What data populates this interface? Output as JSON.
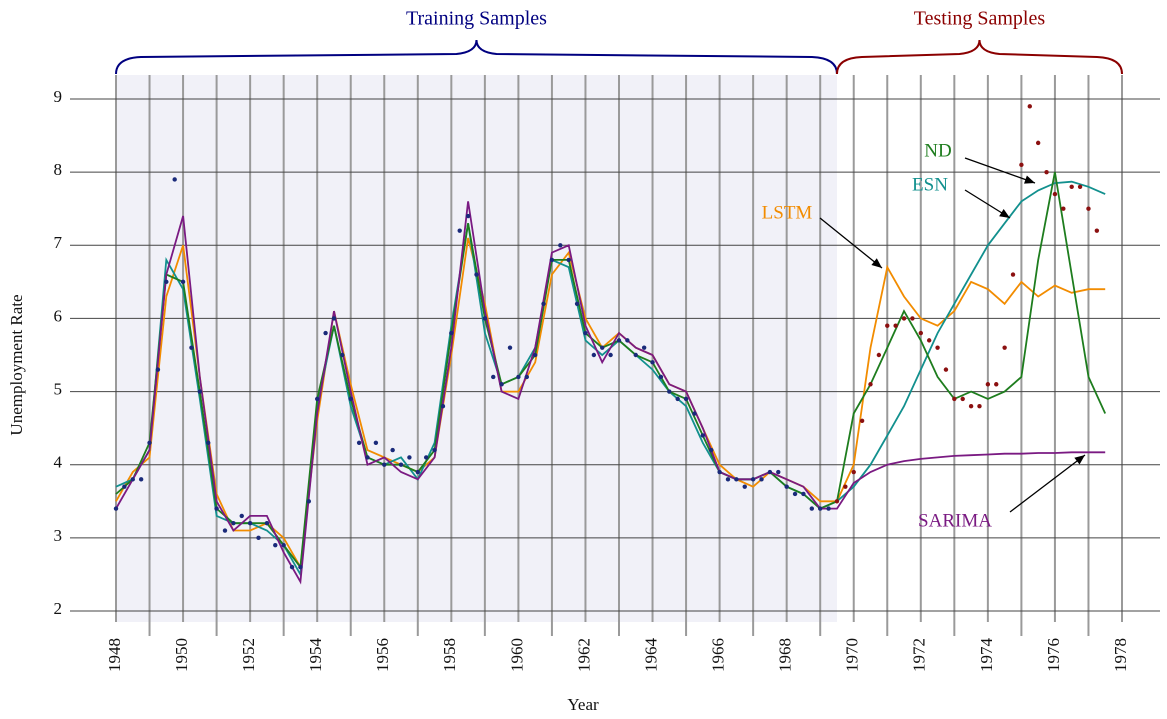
{
  "chart_data": {
    "type": "line",
    "xlabel": "Year",
    "ylabel": "Unemployment Rate",
    "xlim": [
      1948,
      1978
    ],
    "ylim": [
      2,
      9.4
    ],
    "xticks": [
      1948,
      1950,
      1952,
      1954,
      1956,
      1958,
      1960,
      1962,
      1964,
      1966,
      1968,
      1970,
      1972,
      1974,
      1976,
      1978
    ],
    "minor_xticks": [
      1949,
      1951,
      1953,
      1955,
      1957,
      1959,
      1961,
      1963,
      1965,
      1967,
      1969,
      1971,
      1973,
      1975,
      1977
    ],
    "yticks": [
      2,
      3,
      4,
      5,
      6,
      7,
      8,
      9
    ],
    "grid": true,
    "train_end": 1969.5,
    "regions": [
      {
        "label": "Training Samples",
        "range": [
          1948,
          1969.5
        ],
        "color": "#000080"
      },
      {
        "label": "Testing Samples",
        "range": [
          1969.5,
          1978
        ],
        "color": "#8b0000"
      }
    ],
    "actual": {
      "color": "#1a2a7a",
      "test_color": "#8b1010",
      "x_start": 1948,
      "x_step": 0.25,
      "values": [
        3.4,
        3.7,
        3.8,
        3.8,
        4.3,
        5.3,
        6.5,
        7.9,
        6.5,
        5.6,
        5.0,
        4.3,
        3.4,
        3.1,
        3.2,
        3.3,
        3.2,
        3.0,
        3.2,
        2.9,
        2.9,
        2.6,
        2.6,
        3.5,
        4.9,
        5.8,
        6.0,
        5.5,
        4.9,
        4.3,
        4.1,
        4.3,
        4.0,
        4.2,
        4.0,
        4.1,
        3.9,
        4.1,
        4.2,
        4.8,
        5.8,
        7.2,
        7.4,
        6.6,
        6.0,
        5.2,
        5.1,
        5.6,
        5.2,
        5.2,
        5.5,
        6.2,
        6.8,
        7.0,
        6.8,
        6.2,
        5.8,
        5.5,
        5.6,
        5.5,
        5.7,
        5.7,
        5.5,
        5.6,
        5.4,
        5.2,
        5.0,
        4.9,
        4.9,
        4.7,
        4.4,
        4.2,
        3.9,
        3.8,
        3.8,
        3.7,
        3.8,
        3.8,
        3.9,
        3.9,
        3.7,
        3.6,
        3.6,
        3.4,
        3.4,
        3.4,
        3.5,
        3.7,
        3.9,
        4.6,
        5.1,
        5.5,
        5.9,
        5.9,
        6.0,
        6.0,
        5.8,
        5.7,
        5.6,
        5.3,
        4.9,
        4.9,
        4.8,
        4.8,
        5.1,
        5.1,
        5.6,
        6.6,
        8.1,
        8.9,
        8.4,
        8.0,
        7.7,
        7.5,
        7.8,
        7.8,
        7.5,
        7.2
      ]
    },
    "model_x_start": 1948,
    "model_x_step": 0.5,
    "series": [
      {
        "name": "LSTM",
        "color": "#f28c00",
        "values": [
          3.5,
          3.9,
          4.1,
          6.3,
          7.0,
          5.2,
          3.6,
          3.1,
          3.1,
          3.2,
          3.0,
          2.6,
          4.6,
          6.1,
          5.1,
          4.2,
          4.1,
          4.0,
          3.9,
          4.1,
          5.5,
          7.1,
          6.2,
          5.0,
          5.0,
          5.4,
          6.6,
          6.9,
          6.0,
          5.6,
          5.8,
          5.6,
          5.5,
          5.1,
          5.0,
          4.5,
          4.0,
          3.8,
          3.7,
          3.9,
          3.8,
          3.7,
          3.5,
          3.5,
          4.0,
          5.6,
          6.7,
          6.3,
          6.0,
          5.9,
          6.1,
          6.5,
          6.4,
          6.2,
          6.5,
          6.3,
          6.45,
          6.35,
          6.4,
          6.4
        ]
      },
      {
        "name": "ESN",
        "color": "#12908e",
        "values": [
          3.7,
          3.8,
          4.2,
          6.8,
          6.4,
          4.9,
          3.3,
          3.2,
          3.2,
          3.1,
          2.9,
          2.5,
          4.8,
          5.9,
          4.8,
          4.1,
          4.0,
          4.1,
          3.8,
          4.3,
          5.9,
          7.3,
          5.8,
          5.1,
          5.2,
          5.6,
          6.8,
          6.7,
          5.7,
          5.5,
          5.7,
          5.5,
          5.3,
          5.0,
          4.8,
          4.3,
          3.9,
          3.8,
          3.8,
          3.9,
          3.7,
          3.6,
          3.4,
          3.5,
          3.7,
          4.0,
          4.4,
          4.8,
          5.3,
          5.8,
          6.2,
          6.6,
          7.0,
          7.3,
          7.6,
          7.75,
          7.85,
          7.87,
          7.8,
          7.7
        ]
      },
      {
        "name": "ND",
        "color": "#1e7d1e",
        "values": [
          3.6,
          3.8,
          4.3,
          6.6,
          6.5,
          5.0,
          3.4,
          3.2,
          3.2,
          3.2,
          2.9,
          2.6,
          4.9,
          5.9,
          4.9,
          4.1,
          4.0,
          4.0,
          3.9,
          4.2,
          5.8,
          7.3,
          6.0,
          5.1,
          5.2,
          5.5,
          6.8,
          6.8,
          5.8,
          5.6,
          5.7,
          5.5,
          5.4,
          5.0,
          4.9,
          4.4,
          3.9,
          3.8,
          3.8,
          3.9,
          3.7,
          3.6,
          3.4,
          3.5,
          4.7,
          5.1,
          5.6,
          6.1,
          5.7,
          5.2,
          4.9,
          5.0,
          4.9,
          5.0,
          5.2,
          6.8,
          8.0,
          6.6,
          5.2,
          4.7
        ]
      },
      {
        "name": "SARIMA",
        "color": "#7a1a82",
        "values": [
          3.4,
          3.8,
          4.2,
          6.6,
          7.4,
          5.2,
          3.5,
          3.1,
          3.3,
          3.3,
          2.8,
          2.4,
          4.7,
          6.1,
          5.0,
          4.0,
          4.1,
          3.9,
          3.8,
          4.1,
          5.6,
          7.6,
          6.1,
          5.0,
          4.9,
          5.6,
          6.9,
          7.0,
          5.9,
          5.4,
          5.8,
          5.6,
          5.5,
          5.1,
          5.0,
          4.5,
          3.9,
          3.8,
          3.8,
          3.9,
          3.8,
          3.7,
          3.4,
          3.4,
          3.75,
          3.9,
          4.0,
          4.05,
          4.08,
          4.1,
          4.12,
          4.13,
          4.14,
          4.15,
          4.15,
          4.16,
          4.16,
          4.17,
          4.17,
          4.17
        ]
      }
    ]
  }
}
